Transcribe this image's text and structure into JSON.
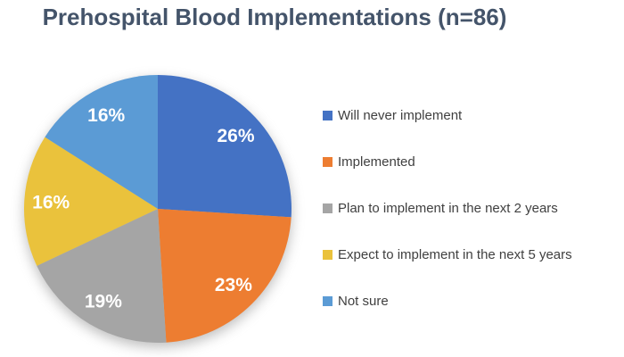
{
  "chart_data": {
    "type": "pie",
    "title": "Prehospital Blood Implementations (n=86)",
    "direction": "clockwise",
    "start_angle_deg": 0,
    "legend_position": "right",
    "data_label_style": "inside white bold percent",
    "grid": false,
    "series": [
      {
        "label": "Will never implement",
        "value": 26,
        "data_label": "26%",
        "color": "#4472C4"
      },
      {
        "label": "Implemented",
        "value": 23,
        "data_label": "23%",
        "color": "#ED7D31"
      },
      {
        "label": "Plan to implement in the next 2 years",
        "value": 19,
        "data_label": "19%",
        "color": "#A5A5A5"
      },
      {
        "label": "Expect to implement in the next 5 years",
        "value": 16,
        "data_label": "16%",
        "color": "#EAC23C"
      },
      {
        "label": "Not sure",
        "value": 16,
        "data_label": "16%",
        "color": "#5B9BD5"
      }
    ],
    "colors": {
      "title_text": "#44546A",
      "legend_text": "#404040",
      "data_label_text": "#FFFFFF",
      "background": "#FFFFFF"
    }
  }
}
